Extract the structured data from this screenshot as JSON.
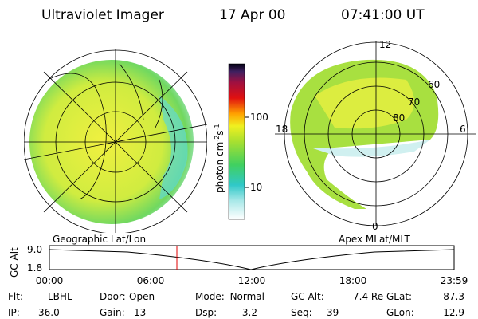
{
  "header": {
    "title": "Ultraviolet Imager",
    "date": "17 Apr 00",
    "time": "07:41:00 UT"
  },
  "colorbar": {
    "label": [
      "photon cm",
      "-2",
      "s",
      "-1"
    ],
    "ticks": [
      "100",
      "10"
    ]
  },
  "geo_panel": {
    "caption": "Geographic Lat/Lon"
  },
  "polar_panel": {
    "caption": "Apex MLat/MLT",
    "mlt_labels": [
      "12",
      "18",
      "6",
      "0"
    ],
    "lat_labels": [
      "60",
      "70",
      "80"
    ]
  },
  "timeline": {
    "axis_label": "GC Alt",
    "y_labels": [
      "9.0",
      "1.8"
    ],
    "x_labels": [
      "00:00",
      "06:00",
      "12:00",
      "18:00",
      "23:59"
    ]
  },
  "footer": {
    "rows": [
      [
        {
          "label": "Flt:",
          "value": "LBHL"
        },
        {
          "label": "Door:",
          "value": "Open"
        },
        {
          "label": "Mode:",
          "value": "Normal"
        },
        {
          "label": "GC Alt:",
          "value": "7.4 Re"
        },
        {
          "label": "GLat:",
          "value": "87.3"
        }
      ],
      [
        {
          "label": "IP:",
          "value": "36.0"
        },
        {
          "label": "Gain:",
          "value": "13"
        },
        {
          "label": "Dsp:",
          "value": "3.2"
        },
        {
          "label": "Seq:",
          "value": "39"
        },
        {
          "label": "GLon:",
          "value": "12.9"
        }
      ]
    ]
  }
}
